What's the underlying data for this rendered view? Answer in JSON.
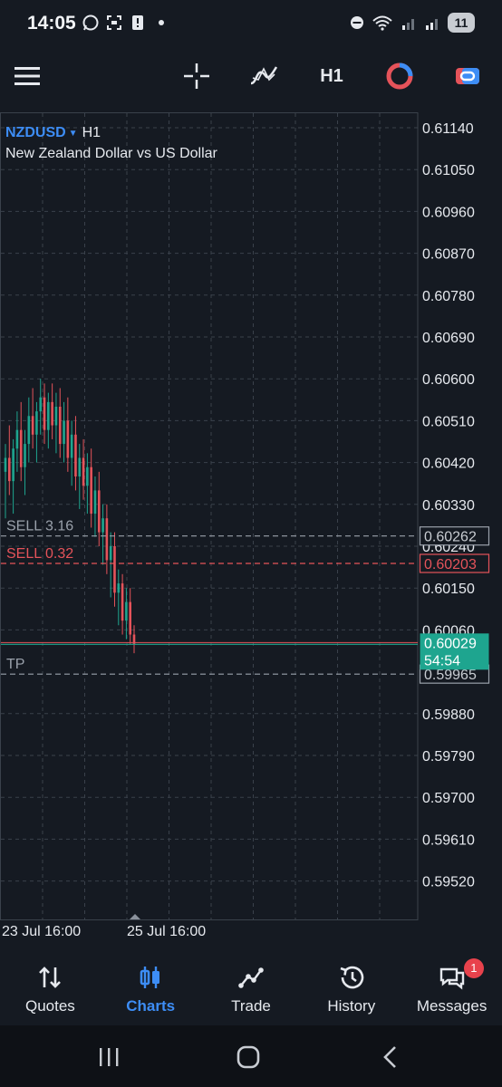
{
  "status_bar": {
    "time": "14:05",
    "battery": "11"
  },
  "toolbar": {
    "timeframe_label": "H1"
  },
  "symbol": {
    "name": "NZDUSD",
    "timeframe": "H1",
    "description": "New Zealand Dollar vs US Dollar"
  },
  "chart_data": {
    "type": "candlestick",
    "price_ticks": [
      "0.61140",
      "0.61050",
      "0.60960",
      "0.60870",
      "0.60780",
      "0.60690",
      "0.60600",
      "0.60510",
      "0.60420",
      "0.60330",
      "0.60240",
      "0.60150",
      "0.60060",
      "0.59880",
      "0.59790",
      "0.59700",
      "0.59610",
      "0.59520"
    ],
    "ylim": [
      0.5946,
      0.6117
    ],
    "time_labels": [
      "23 Jul 16:00",
      "25 Jul 16:00"
    ],
    "grid": true,
    "order_lines": [
      {
        "label": "SELL 3.16",
        "price": "0.60262",
        "color": "#9aa1ab"
      },
      {
        "label": "SELL 0.32",
        "price": "0.60203",
        "color": "#e5535a"
      },
      {
        "label": "TP",
        "price": "0.59965",
        "color": "#9aa1ab"
      }
    ],
    "current_price": {
      "price": "0.60029",
      "countdown": "54:54",
      "color": "#1ea58f"
    },
    "candles": [
      [
        0.604,
        0.6046,
        0.603,
        0.6043
      ],
      [
        0.6043,
        0.605,
        0.6035,
        0.6038
      ],
      [
        0.6038,
        0.6047,
        0.6031,
        0.6045
      ],
      [
        0.6045,
        0.6053,
        0.604,
        0.6049
      ],
      [
        0.6049,
        0.6055,
        0.6038,
        0.6041
      ],
      [
        0.6041,
        0.6049,
        0.6035,
        0.6046
      ],
      [
        0.6046,
        0.6056,
        0.6042,
        0.6052
      ],
      [
        0.6052,
        0.6058,
        0.6045,
        0.6048
      ],
      [
        0.6048,
        0.6055,
        0.6042,
        0.6053
      ],
      [
        0.6053,
        0.606,
        0.6048,
        0.6056
      ],
      [
        0.6056,
        0.6059,
        0.6046,
        0.6049
      ],
      [
        0.6049,
        0.6057,
        0.6045,
        0.6055
      ],
      [
        0.6055,
        0.6059,
        0.6047,
        0.605
      ],
      [
        0.605,
        0.6057,
        0.6044,
        0.6054
      ],
      [
        0.6054,
        0.6058,
        0.6043,
        0.6046
      ],
      [
        0.6046,
        0.6055,
        0.6042,
        0.6051
      ],
      [
        0.6051,
        0.6056,
        0.604,
        0.6043
      ],
      [
        0.6043,
        0.6051,
        0.6037,
        0.6048
      ],
      [
        0.6048,
        0.6052,
        0.6036,
        0.6039
      ],
      [
        0.6039,
        0.6046,
        0.6032,
        0.6043
      ],
      [
        0.6043,
        0.6047,
        0.6034,
        0.6037
      ],
      [
        0.6037,
        0.6044,
        0.6031,
        0.6041
      ],
      [
        0.6041,
        0.6045,
        0.6028,
        0.6031
      ],
      [
        0.6031,
        0.6039,
        0.6026,
        0.6036
      ],
      [
        0.6036,
        0.604,
        0.6024,
        0.6027
      ],
      [
        0.6027,
        0.6033,
        0.602,
        0.603
      ],
      [
        0.603,
        0.6033,
        0.6018,
        0.6021
      ],
      [
        0.6021,
        0.6027,
        0.6013,
        0.6024
      ],
      [
        0.6024,
        0.6027,
        0.6011,
        0.6014
      ],
      [
        0.6014,
        0.6019,
        0.6007,
        0.6016
      ],
      [
        0.6016,
        0.6018,
        0.6005,
        0.6008
      ],
      [
        0.6008,
        0.6015,
        0.6004,
        0.6012
      ],
      [
        0.6012,
        0.6015,
        0.6003,
        0.6005
      ],
      [
        0.6005,
        0.6007,
        0.6001,
        0.6003
      ]
    ]
  },
  "bottom_nav": [
    {
      "label": "Quotes",
      "icon": "quotes-icon",
      "active": false
    },
    {
      "label": "Charts",
      "icon": "charts-icon",
      "active": true
    },
    {
      "label": "Trade",
      "icon": "trade-icon",
      "active": false
    },
    {
      "label": "History",
      "icon": "history-icon",
      "active": false
    },
    {
      "label": "Messages",
      "icon": "messages-icon",
      "active": false,
      "badge": "1"
    }
  ],
  "colors": {
    "background": "#151a22",
    "accent": "#3d8df5",
    "bear": "#e5535a",
    "bull": "#1ea58f",
    "grid": "#3a414b"
  }
}
